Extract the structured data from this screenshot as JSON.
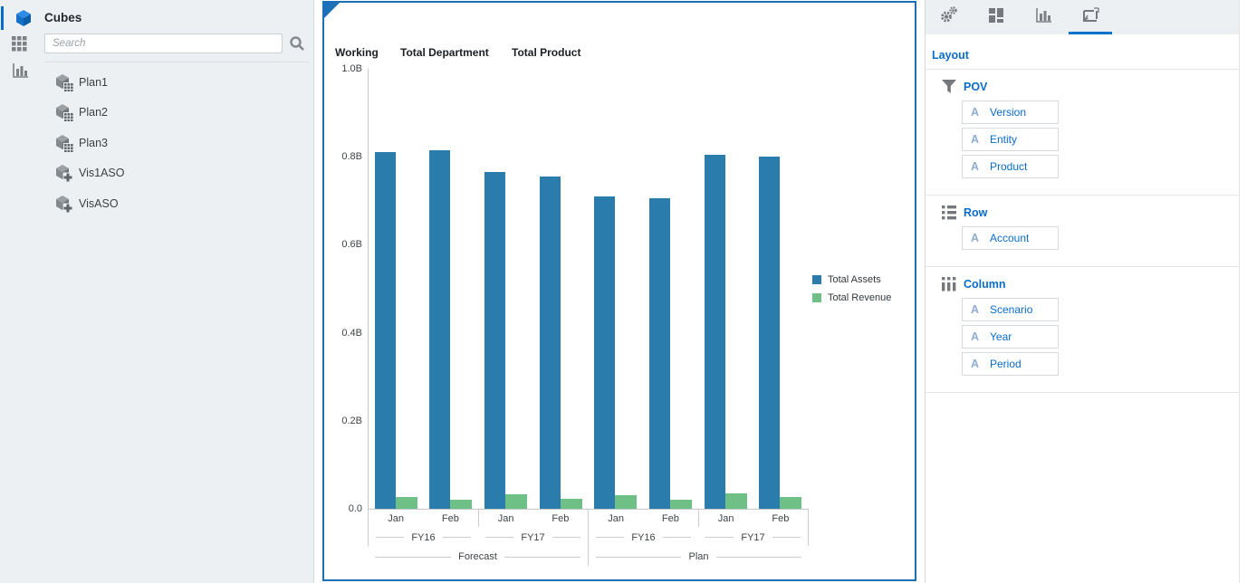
{
  "sidebar": {
    "title": "Cubes",
    "app_icon": "cube-icon",
    "rail": [
      {
        "icon": "grid-icon"
      },
      {
        "icon": "bar-chart-icon"
      }
    ],
    "search": {
      "placeholder": "Search",
      "icon": "search-icon"
    },
    "items": [
      {
        "label": "Plan1",
        "icon": "cube-grid-icon"
      },
      {
        "label": "Plan2",
        "icon": "cube-grid-icon"
      },
      {
        "label": "Plan3",
        "icon": "cube-grid-icon"
      },
      {
        "label": "Vis1ASO",
        "icon": "cube-plus-icon"
      },
      {
        "label": "VisASO",
        "icon": "cube-plus-icon"
      }
    ]
  },
  "chart_panel": {
    "pov_headers": [
      "Working",
      "Total Department",
      "Total Product"
    ],
    "border_color": "#1d6fb8"
  },
  "chart_data": {
    "type": "bar",
    "title": "",
    "xlabel": "",
    "ylabel": "",
    "ylim": [
      0,
      1.0
    ],
    "y_ticks": [
      "1.0B",
      "0.8B",
      "0.6B",
      "0.4B",
      "0.2B",
      "0.0"
    ],
    "grid": false,
    "legend_position": "right",
    "categories": [
      "Jan",
      "Feb",
      "Jan",
      "Feb",
      "Jan",
      "Feb",
      "Jan",
      "Feb"
    ],
    "year_groups": [
      {
        "label": "FY16",
        "span": 2
      },
      {
        "label": "FY17",
        "span": 2
      },
      {
        "label": "FY16",
        "span": 2
      },
      {
        "label": "FY17",
        "span": 2
      }
    ],
    "scenario_groups": [
      {
        "label": "Forecast",
        "span": 4
      },
      {
        "label": "Plan",
        "span": 4
      }
    ],
    "series": [
      {
        "name": "Total Assets",
        "color": "#2a7cad",
        "values": [
          0.81,
          0.815,
          0.765,
          0.755,
          0.71,
          0.705,
          0.805,
          0.8
        ]
      },
      {
        "name": "Total Revenue",
        "color": "#6ec087",
        "values": [
          0.027,
          0.02,
          0.032,
          0.022,
          0.03,
          0.02,
          0.034,
          0.026
        ]
      }
    ]
  },
  "right_panel": {
    "title": "Layout",
    "tabs": [
      {
        "icon": "gears-icon",
        "selected": false
      },
      {
        "icon": "tiles-icon",
        "selected": false
      },
      {
        "icon": "bar-chart-icon",
        "selected": false
      },
      {
        "icon": "layout-canvas-icon",
        "selected": true
      }
    ],
    "item_prefix": "A",
    "sections": [
      {
        "icon": "filter-icon",
        "label": "POV",
        "items": [
          "Version",
          "Entity",
          "Product"
        ]
      },
      {
        "icon": "rows-icon",
        "label": "Row",
        "items": [
          "Account"
        ]
      },
      {
        "icon": "columns-icon",
        "label": "Column",
        "items": [
          "Scenario",
          "Year",
          "Period"
        ]
      }
    ]
  },
  "colors": {
    "accent_blue": "#0a6cc9",
    "panel_border": "#1d6fb8",
    "sidebar_bg": "#edf0f3",
    "bar_blue": "#2a7cad",
    "bar_green": "#6ec087"
  }
}
